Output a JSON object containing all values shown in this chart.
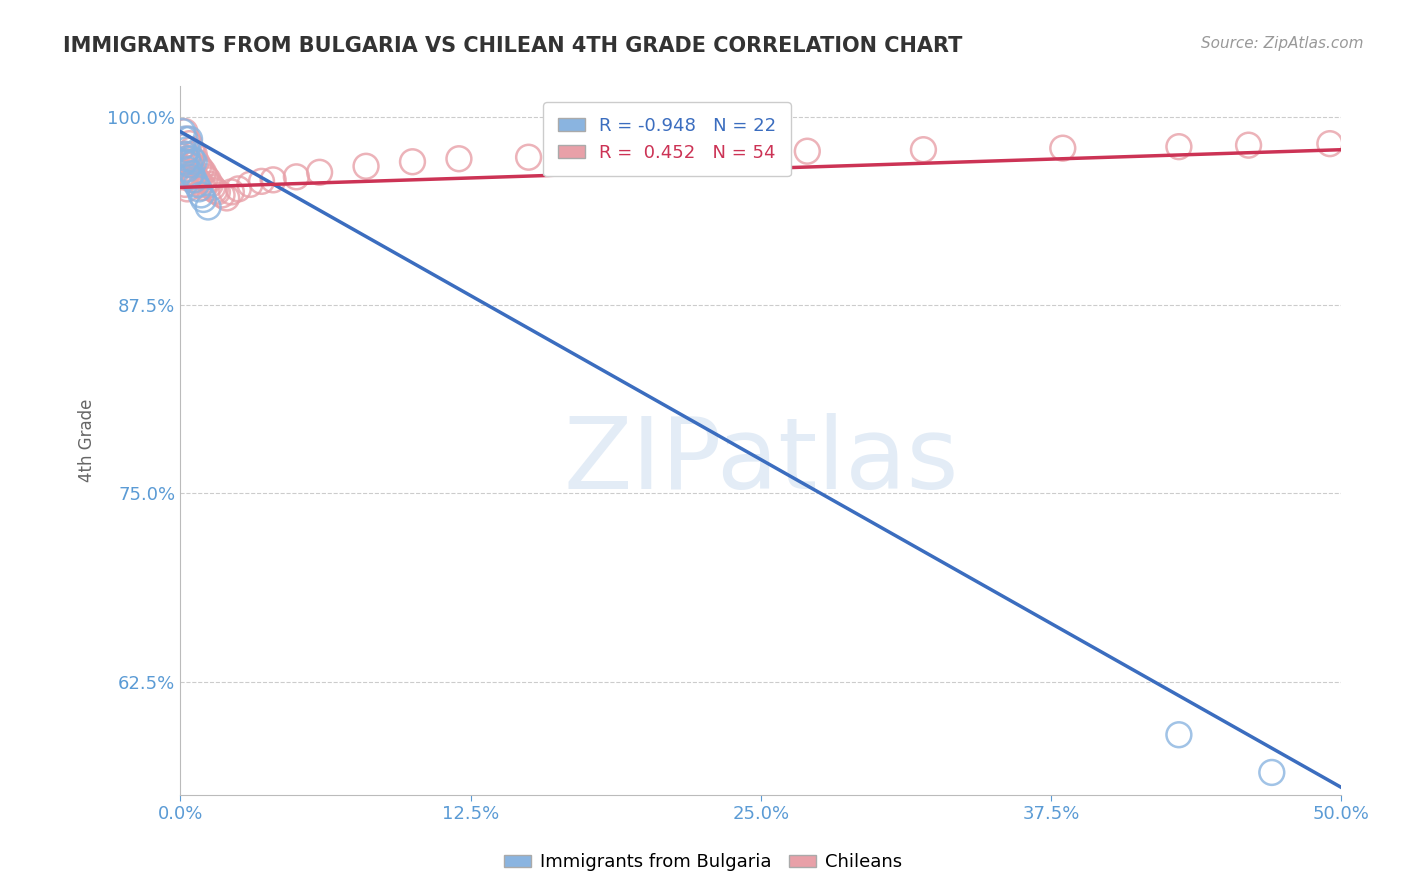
{
  "title": "IMMIGRANTS FROM BULGARIA VS CHILEAN 4TH GRADE CORRELATION CHART",
  "source_text": "Source: ZipAtlas.com",
  "ylabel": "4th Grade",
  "watermark": "ZIPatlas",
  "blue_label": "Immigrants from Bulgaria",
  "pink_label": "Chileans",
  "blue_R": -0.948,
  "blue_N": 22,
  "pink_R": 0.452,
  "pink_N": 54,
  "blue_color": "#8ab4e0",
  "pink_color": "#e8a0a8",
  "blue_line_color": "#3b6dbf",
  "pink_line_color": "#cc3355",
  "title_color": "#333333",
  "axis_label_color": "#666666",
  "tick_color": "#5b9bd5",
  "grid_color": "#cccccc",
  "xlim": [
    0.0,
    0.5
  ],
  "ylim": [
    0.55,
    1.02
  ],
  "xtick_positions": [
    0.0,
    0.125,
    0.25,
    0.375,
    0.5
  ],
  "xtick_labels": [
    "0.0%",
    "12.5%",
    "25.0%",
    "37.5%",
    "50.0%"
  ],
  "ytick_positions": [
    1.0,
    0.875,
    0.75,
    0.625
  ],
  "ytick_labels": [
    "100.0%",
    "87.5%",
    "75.0%",
    "62.5%"
  ],
  "blue_line_x": [
    0.0,
    0.5
  ],
  "blue_line_y": [
    0.99,
    0.555
  ],
  "pink_line_x": [
    0.0,
    0.5
  ],
  "pink_line_y": [
    0.953,
    0.978
  ],
  "blue_scatter_x": [
    0.001,
    0.001,
    0.002,
    0.002,
    0.002,
    0.003,
    0.003,
    0.003,
    0.004,
    0.004,
    0.004,
    0.005,
    0.005,
    0.006,
    0.006,
    0.007,
    0.008,
    0.009,
    0.01,
    0.012,
    0.43,
    0.47
  ],
  "blue_scatter_y": [
    0.99,
    0.98,
    0.975,
    0.985,
    0.97,
    0.972,
    0.965,
    0.978,
    0.968,
    0.96,
    0.985,
    0.962,
    0.972,
    0.958,
    0.97,
    0.955,
    0.952,
    0.948,
    0.945,
    0.94,
    0.59,
    0.565
  ],
  "pink_scatter_x": [
    0.001,
    0.001,
    0.001,
    0.002,
    0.002,
    0.002,
    0.002,
    0.003,
    0.003,
    0.003,
    0.003,
    0.004,
    0.004,
    0.004,
    0.005,
    0.005,
    0.005,
    0.006,
    0.006,
    0.007,
    0.007,
    0.008,
    0.008,
    0.009,
    0.009,
    0.01,
    0.01,
    0.011,
    0.012,
    0.013,
    0.014,
    0.015,
    0.016,
    0.018,
    0.02,
    0.022,
    0.025,
    0.03,
    0.035,
    0.04,
    0.05,
    0.06,
    0.08,
    0.1,
    0.12,
    0.15,
    0.18,
    0.22,
    0.27,
    0.32,
    0.38,
    0.43,
    0.46,
    0.495
  ],
  "pink_scatter_y": [
    0.98,
    0.97,
    0.96,
    0.99,
    0.975,
    0.965,
    0.955,
    0.985,
    0.972,
    0.963,
    0.952,
    0.982,
    0.97,
    0.96,
    0.978,
    0.968,
    0.958,
    0.975,
    0.962,
    0.97,
    0.958,
    0.967,
    0.957,
    0.965,
    0.955,
    0.963,
    0.953,
    0.96,
    0.958,
    0.955,
    0.953,
    0.951,
    0.95,
    0.948,
    0.946,
    0.95,
    0.952,
    0.955,
    0.957,
    0.958,
    0.96,
    0.963,
    0.967,
    0.97,
    0.972,
    0.973,
    0.975,
    0.976,
    0.977,
    0.978,
    0.979,
    0.98,
    0.981,
    0.982
  ]
}
